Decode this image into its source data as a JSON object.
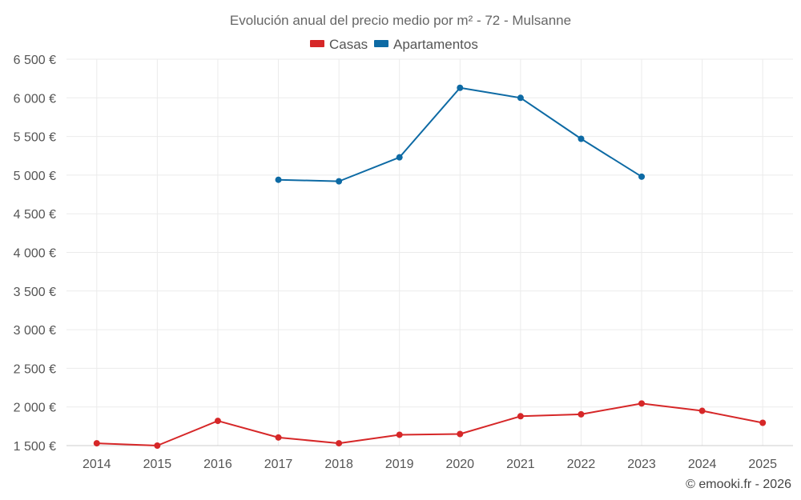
{
  "chart_data": {
    "type": "line",
    "title": "Evolución anual del precio medio por m² - 72 - Mulsanne",
    "categories": [
      "2014",
      "2015",
      "2016",
      "2017",
      "2018",
      "2019",
      "2020",
      "2021",
      "2022",
      "2023",
      "2024",
      "2025"
    ],
    "ylim": [
      1500,
      6500
    ],
    "yticks": [
      1500,
      2000,
      2500,
      3000,
      3500,
      4000,
      4500,
      5000,
      5500,
      6000,
      6500
    ],
    "ytick_labels": [
      "1 500 €",
      "2 000 €",
      "2 500 €",
      "3 000 €",
      "3 500 €",
      "4 000 €",
      "4 500 €",
      "5 000 €",
      "5 500 €",
      "6 000 €",
      "6 500 €"
    ],
    "legend_position": "top-center",
    "grid": true,
    "series": [
      {
        "name": "Casas",
        "color": "#d62728",
        "values": [
          1530,
          1500,
          1820,
          1605,
          1530,
          1640,
          1650,
          1880,
          1905,
          2045,
          1950,
          1795
        ]
      },
      {
        "name": "Apartamentos",
        "color": "#0d6aa4",
        "values": [
          null,
          null,
          null,
          4940,
          4920,
          5230,
          6130,
          6000,
          5470,
          4980,
          null,
          null
        ]
      }
    ]
  },
  "credit": "© emooki.fr - 2026"
}
